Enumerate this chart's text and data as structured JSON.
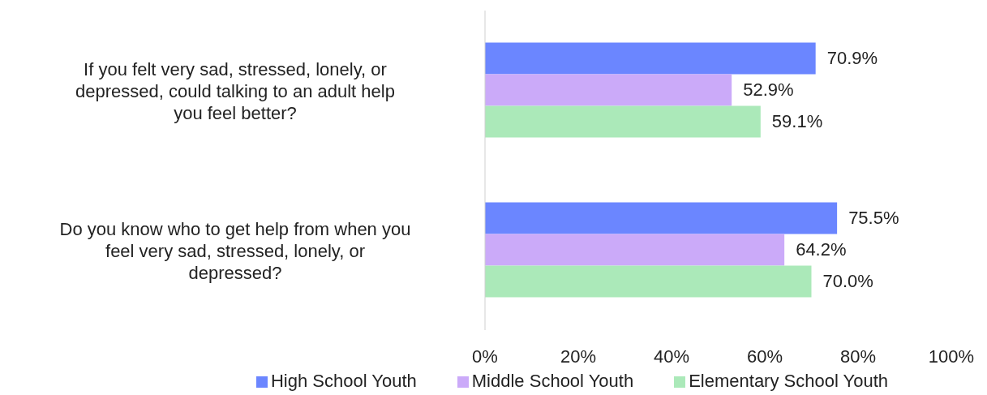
{
  "chart_data": {
    "type": "bar",
    "orientation": "horizontal",
    "categories": [
      "If you felt very sad, stressed, lonely, or depressed, could talking to an adult help you feel better?",
      "Do you know who to get help from when you feel very sad, stressed, lonely, or depressed?"
    ],
    "series": [
      {
        "name": "High School Youth",
        "color": "#6b86ff",
        "values": [
          70.9,
          75.5
        ],
        "value_labels": [
          "70.9%",
          "75.5%"
        ]
      },
      {
        "name": "Middle School Youth",
        "color": "#cbaaf9",
        "values": [
          52.9,
          64.2
        ],
        "value_labels": [
          "52.9%",
          "64.2%"
        ]
      },
      {
        "name": "Elementary School Youth",
        "color": "#abe9b9",
        "values": [
          59.1,
          70.0
        ],
        "value_labels": [
          "59.1%",
          "70.0%"
        ]
      }
    ],
    "xlim": [
      0,
      100
    ],
    "xticks": [
      {
        "value": 0,
        "label": "0%"
      },
      {
        "value": 20,
        "label": "20%"
      },
      {
        "value": 40,
        "label": "40%"
      },
      {
        "value": 60,
        "label": "60%"
      },
      {
        "value": 80,
        "label": "80%"
      },
      {
        "value": 100,
        "label": "100%"
      }
    ],
    "grid": false,
    "legend": "bottom"
  }
}
